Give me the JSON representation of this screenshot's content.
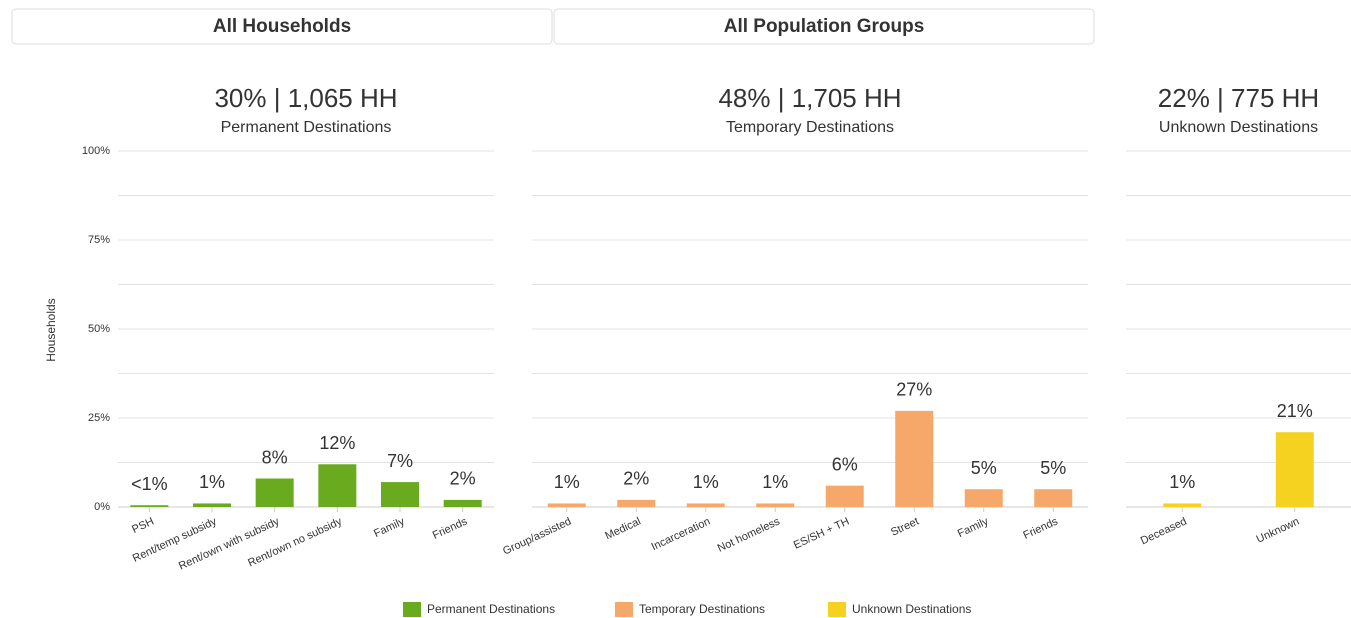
{
  "filters": [
    "All Households",
    "All Population Groups"
  ],
  "chart_data": [
    {
      "type": "bar",
      "title": "30% | 1,065 HH",
      "ylabel": "Households",
      "categories": [
        "PSH",
        "Rent/temp subsidy",
        "Rent/own with subsidy",
        "Rent/own no subsidy",
        "Family",
        "Friends"
      ],
      "series": [
        {
          "name": "Permanent Destinations",
          "color": "#6aaa1e",
          "values": [
            0.5,
            1,
            8,
            12,
            7,
            2
          ],
          "value_labels": [
            "<1%",
            "1%",
            "8%",
            "12%",
            "7%",
            "2%"
          ]
        }
      ],
      "ylim": [
        0,
        100
      ],
      "yticks": [
        {
          "value": 0,
          "label": "0%"
        },
        {
          "value": 25,
          "label": "25%"
        },
        {
          "value": 50,
          "label": "50%"
        },
        {
          "value": 75,
          "label": "75%"
        },
        {
          "value": 100,
          "label": "100%"
        }
      ],
      "minor_yticks": [
        12.5,
        37.5,
        62.5,
        87.5
      ],
      "grid": true
    },
    {
      "type": "bar",
      "title": "48% | 1,705 HH",
      "categories": [
        "Group/assisted",
        "Medical",
        "Incarceration",
        "Not homeless",
        "ES/SH + TH",
        "Street",
        "Family",
        "Friends"
      ],
      "series": [
        {
          "name": "Temporary Destinations",
          "color": "#f6a86b",
          "values": [
            1,
            2,
            1,
            1,
            6,
            27,
            5,
            5
          ],
          "value_labels": [
            "1%",
            "2%",
            "1%",
            "1%",
            "6%",
            "27%",
            "5%",
            "5%"
          ]
        }
      ],
      "ylim": [
        0,
        100
      ],
      "grid": true
    },
    {
      "type": "bar",
      "title": "22% | 775 HH",
      "categories": [
        "Deceased",
        "Unknown"
      ],
      "series": [
        {
          "name": "Unknown Destinations",
          "color": "#f4d21f",
          "values": [
            1,
            21
          ],
          "value_labels": [
            "1%",
            "21%"
          ]
        }
      ],
      "ylim": [
        0,
        100
      ],
      "grid": true
    }
  ]
}
